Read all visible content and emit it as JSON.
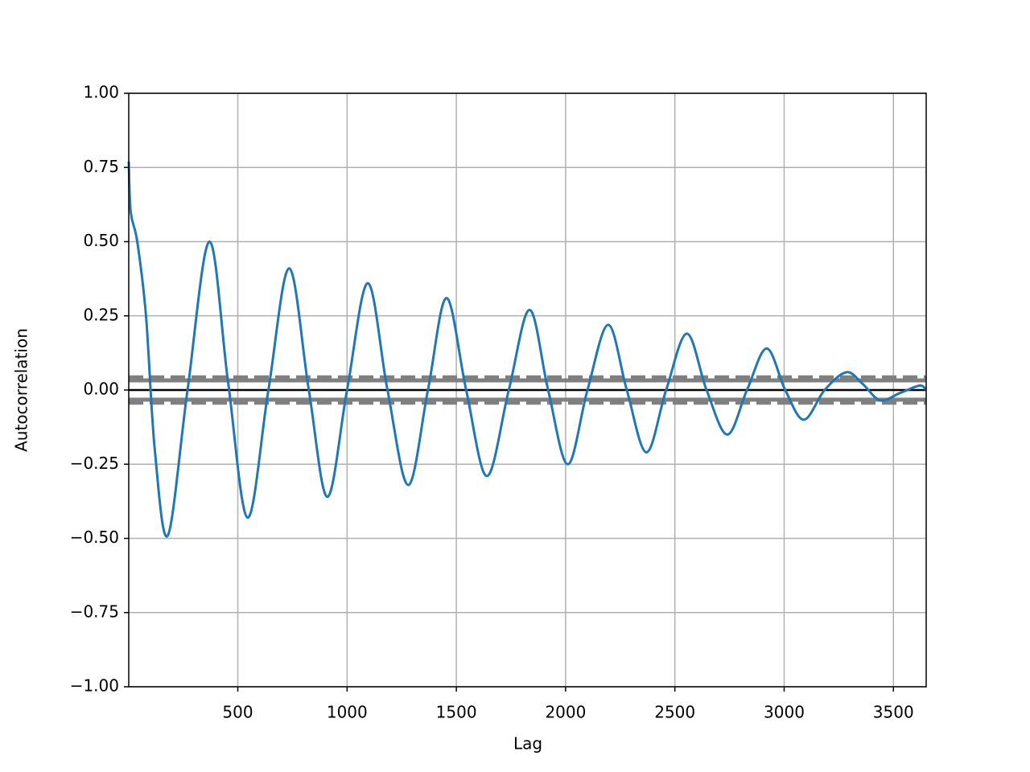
{
  "chart_data": {
    "type": "line",
    "xlabel": "Lag",
    "ylabel": "Autocorrelation",
    "x": [
      1,
      10,
      40,
      80,
      120,
      180,
      270,
      370,
      455,
      545,
      640,
      735,
      825,
      910,
      1000,
      1095,
      1185,
      1280,
      1370,
      1455,
      1545,
      1640,
      1740,
      1835,
      1920,
      2010,
      2100,
      2195,
      2280,
      2370,
      2460,
      2555,
      2645,
      2740,
      2830,
      2920,
      3005,
      3090,
      3185,
      3285,
      3360,
      3440,
      3530,
      3620,
      3650
    ],
    "series": [
      {
        "color": "#1f77b4",
        "values": [
          0.77,
          0.6,
          0.5,
          0.25,
          -0.2,
          -0.49,
          0.0,
          0.5,
          0.03,
          -0.43,
          0.0,
          0.41,
          0.0,
          -0.36,
          0.0,
          0.36,
          0.0,
          -0.32,
          0.0,
          0.31,
          0.0,
          -0.29,
          0.0,
          0.27,
          0.0,
          -0.25,
          0.0,
          0.22,
          0.0,
          -0.21,
          0.0,
          0.19,
          0.0,
          -0.15,
          0.0,
          0.14,
          0.0,
          -0.1,
          0.0,
          0.06,
          0.02,
          -0.035,
          -0.01,
          0.015,
          0.0
        ]
      }
    ],
    "hlines": [
      {
        "value": 0.0426,
        "color": "#808080",
        "style": "dashed"
      },
      {
        "value": 0.0324,
        "color": "#808080",
        "style": "solid"
      },
      {
        "value": 0,
        "color": "#000000",
        "style": "solid"
      },
      {
        "value": -0.0324,
        "color": "#808080",
        "style": "solid"
      },
      {
        "value": -0.0426,
        "color": "#808080",
        "style": "dashed"
      }
    ],
    "xlim": [
      1,
      3650
    ],
    "ylim": [
      -1,
      1
    ],
    "xticks": [
      500,
      1000,
      1500,
      2000,
      2500,
      3000,
      3500
    ],
    "yticks": [
      {
        "value": -1,
        "label": "−1.00"
      },
      {
        "value": -0.75,
        "label": "−0.75"
      },
      {
        "value": -0.5,
        "label": "−0.50"
      },
      {
        "value": -0.25,
        "label": "−0.25"
      },
      {
        "value": 0,
        "label": "0.00"
      },
      {
        "value": 0.25,
        "label": "0.25"
      },
      {
        "value": 0.5,
        "label": "0.50"
      },
      {
        "value": 0.75,
        "label": "0.75"
      },
      {
        "value": 1,
        "label": "1.00"
      }
    ],
    "grid": true
  }
}
